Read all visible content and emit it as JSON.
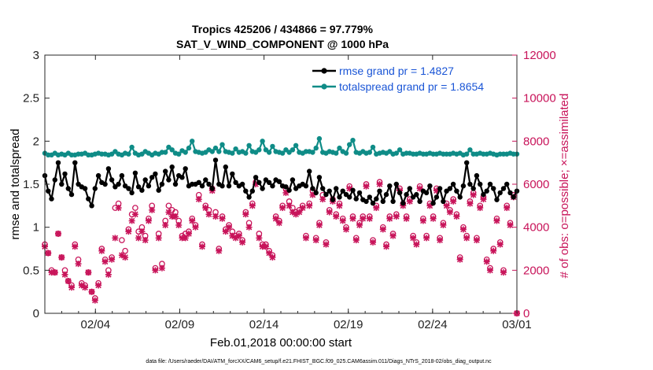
{
  "chart_data": {
    "type": "line",
    "title": "Tropics 425206 / 434866 = 97.779%",
    "subtitle": "SAT_V_WIND_COMPONENT @ 1000 hPa",
    "xlabel": "Feb.01,2018 00:00:00 start",
    "ylabel": "rmse and totalspread",
    "ylabel_right": "# of obs: o=possible; ×=assimilated",
    "x_range_days": [
      1.0,
      29.0
    ],
    "ylim": [
      0,
      3
    ],
    "ylim_right": [
      0,
      12000
    ],
    "x_ticks": [
      {
        "day": 4,
        "label": "02/04"
      },
      {
        "day": 9,
        "label": "02/09"
      },
      {
        "day": 14,
        "label": "02/14"
      },
      {
        "day": 19,
        "label": "02/19"
      },
      {
        "day": 24,
        "label": "02/24"
      },
      {
        "day": 29,
        "label": "03/01"
      }
    ],
    "y_ticks": [
      "0",
      "0.5",
      "1",
      "1.5",
      "2",
      "2.5",
      "3"
    ],
    "y_ticks_right": [
      "0",
      "2000",
      "4000",
      "6000",
      "8000",
      "10000",
      "12000"
    ],
    "colors": {
      "rmse": "#000000",
      "spread": "#0f8c87",
      "obs": "#c8145a",
      "legend_text": "#1a55d6"
    },
    "series": [
      {
        "name": "rmse grand pr = 1.4827",
        "key": "rmse",
        "values": [
          1.6,
          1.42,
          1.33,
          1.55,
          1.75,
          1.5,
          1.62,
          1.45,
          1.38,
          1.75,
          1.5,
          1.47,
          1.45,
          1.33,
          1.25,
          1.45,
          1.6,
          1.52,
          1.5,
          1.68,
          1.55,
          1.47,
          1.5,
          1.6,
          1.48,
          1.45,
          1.4,
          1.63,
          1.47,
          1.43,
          1.55,
          1.48,
          1.58,
          1.62,
          1.43,
          1.5,
          1.65,
          1.55,
          1.7,
          1.5,
          1.6,
          1.58,
          1.68,
          1.48,
          1.5,
          1.5,
          1.52,
          1.48,
          1.55,
          1.5,
          1.45,
          1.78,
          1.5,
          1.48,
          1.7,
          1.48,
          1.62,
          1.52,
          1.48,
          1.5,
          1.42,
          1.35,
          1.42,
          1.58,
          1.52,
          1.45,
          1.55,
          1.52,
          1.48,
          1.55,
          1.53,
          1.48,
          1.47,
          1.43,
          1.55,
          1.45,
          1.48,
          1.5,
          1.48,
          1.65,
          1.45,
          1.4,
          1.58,
          1.45,
          1.38,
          1.42,
          1.32,
          1.45,
          1.35,
          1.42,
          1.38,
          1.35,
          1.43,
          1.33,
          1.4,
          1.32,
          1.3,
          1.35,
          1.28,
          1.33,
          1.42,
          1.3,
          1.38,
          1.48,
          1.3,
          1.5,
          1.4,
          1.28,
          1.38,
          1.45,
          1.35,
          1.38,
          1.3,
          1.42,
          1.4,
          1.48,
          1.28,
          1.35,
          1.45,
          1.3,
          1.42,
          1.45,
          1.5,
          1.42,
          1.35,
          1.48,
          1.75,
          1.5,
          1.45,
          1.6,
          1.5,
          1.38,
          1.42,
          1.5,
          1.45,
          1.32,
          1.4,
          1.45,
          1.5,
          1.4,
          1.35,
          1.42
        ]
      },
      {
        "name": "totalspread grand pr = 1.8654",
        "key": "spread",
        "values": [
          1.86,
          1.84,
          1.84,
          1.86,
          1.84,
          1.85,
          1.84,
          1.86,
          1.84,
          1.84,
          1.85,
          1.85,
          1.86,
          1.84,
          1.84,
          1.85,
          1.86,
          1.85,
          1.85,
          1.84,
          1.85,
          1.88,
          1.85,
          1.84,
          1.86,
          1.85,
          1.93,
          1.86,
          1.84,
          1.85,
          1.88,
          1.86,
          1.84,
          1.86,
          1.85,
          1.87,
          1.87,
          1.93,
          1.9,
          1.86,
          1.85,
          1.89,
          1.87,
          1.92,
          2.0,
          1.88,
          1.87,
          1.86,
          1.87,
          1.9,
          1.88,
          1.92,
          1.88,
          1.96,
          1.88,
          1.87,
          1.86,
          1.91,
          1.87,
          1.88,
          1.86,
          1.95,
          1.88,
          1.87,
          1.9,
          2.0,
          1.9,
          1.87,
          1.94,
          1.88,
          1.87,
          1.86,
          1.9,
          1.87,
          1.9,
          1.95,
          1.87,
          1.86,
          1.88,
          1.88,
          1.87,
          1.92,
          2.03,
          1.87,
          1.86,
          1.88,
          1.87,
          1.86,
          1.92,
          1.88,
          1.86,
          1.96,
          2.01,
          1.87,
          1.86,
          1.88,
          1.86,
          1.87,
          1.93,
          1.85,
          1.86,
          1.87,
          1.86,
          1.88,
          1.85,
          1.86,
          1.9,
          1.85,
          1.86,
          1.86,
          1.85,
          1.85,
          1.86,
          1.85,
          1.85,
          1.86,
          1.85,
          1.85,
          1.86,
          1.85,
          1.85,
          1.85,
          1.86,
          1.85,
          1.86,
          1.84,
          1.85,
          1.9,
          1.85,
          1.85,
          1.86,
          1.85,
          1.85,
          1.86,
          1.85,
          1.84,
          1.85,
          1.85,
          1.85,
          1.86,
          1.85,
          1.85
        ]
      },
      {
        "name": "possible",
        "key": "possible",
        "values": [
          3200,
          2800,
          2000,
          1900,
          3700,
          2600,
          2000,
          1500,
          1300,
          3200,
          2500,
          1400,
          1300,
          1900,
          1000,
          700,
          1400,
          3000,
          2500,
          2000,
          2600,
          4900,
          5100,
          3400,
          2900,
          3900,
          4600,
          4900,
          3800,
          4000,
          3600,
          4400,
          5000,
          2100,
          3700,
          2300,
          4300,
          5000,
          4800,
          4700,
          4300,
          3600,
          3700,
          3800,
          4400,
          4100,
          5500,
          3200,
          5000,
          4800,
          5800,
          4700,
          3000,
          4500,
          3900,
          4100,
          3800,
          3600,
          3700,
          3400,
          4700,
          4200,
          5100,
          6100,
          3700,
          3200,
          3200,
          2900,
          2700,
          4500,
          4300,
          5000,
          5800,
          5200,
          4900,
          4700,
          4800,
          5000,
          3600,
          5100,
          5700,
          3500,
          4200,
          5500,
          3300,
          4800,
          5300,
          4600,
          5100,
          4400,
          4000,
          5900,
          4500,
          3500,
          4200,
          4500,
          6000,
          4500,
          3400,
          5000,
          6100,
          4000,
          3200,
          4500,
          3700,
          4600,
          5800,
          5100,
          4500,
          5300,
          3600,
          3300,
          5900,
          4400,
          3600,
          5100,
          4500,
          5800,
          3500,
          4200,
          5100,
          4800,
          5300,
          4600,
          2600,
          4000,
          3600,
          5200,
          5600,
          3500,
          5000,
          5400,
          2500,
          2100,
          3000,
          4400,
          3300,
          2000,
          5000,
          4200,
          5500,
          0
        ]
      },
      {
        "name": "assimilated",
        "key": "assimilated",
        "values": [
          3100,
          2800,
          1900,
          1900,
          3700,
          2600,
          1800,
          1500,
          1200,
          3100,
          2300,
          1300,
          1200,
          1900,
          1000,
          600,
          1300,
          2900,
          2400,
          1800,
          2500,
          3500,
          4900,
          2700,
          2600,
          3800,
          4300,
          4600,
          3500,
          3800,
          3400,
          4300,
          4800,
          2000,
          3500,
          2100,
          4100,
          4700,
          4500,
          4500,
          4100,
          3500,
          3500,
          3700,
          4300,
          4000,
          5300,
          3100,
          4900,
          4600,
          5700,
          4500,
          2900,
          4400,
          3800,
          4000,
          3600,
          3500,
          3600,
          3300,
          4600,
          4000,
          5000,
          6000,
          3500,
          3100,
          3100,
          2800,
          2600,
          4400,
          4200,
          4900,
          5600,
          5000,
          4700,
          4600,
          4700,
          4900,
          3500,
          5000,
          5500,
          3400,
          4100,
          5300,
          3200,
          4700,
          5200,
          4500,
          5000,
          4300,
          3900,
          5800,
          4400,
          3400,
          4100,
          4400,
          5900,
          4400,
          3300,
          4900,
          6000,
          3900,
          3100,
          4400,
          3600,
          4500,
          5700,
          5000,
          4400,
          5200,
          3500,
          3200,
          5800,
          4300,
          3500,
          5000,
          4400,
          5700,
          3400,
          4100,
          5000,
          4700,
          5200,
          4500,
          2500,
          3900,
          3500,
          5100,
          5500,
          3400,
          4900,
          5300,
          2400,
          2000,
          2900,
          4300,
          3200,
          1900,
          4900,
          4100,
          5400,
          0
        ]
      }
    ],
    "legend": {
      "position": "top-right",
      "entries": [
        "rmse grand pr = 1.4827",
        "totalspread grand pr = 1.8654"
      ]
    },
    "footer": "data file: /Users/raeder/DAI/ATM_forcXX/CAM6_setup/f.e21.FHIST_BGC.f09_025.CAM6assim.011/Diags_NTrS_2018-02/obs_diag_output.nc"
  }
}
